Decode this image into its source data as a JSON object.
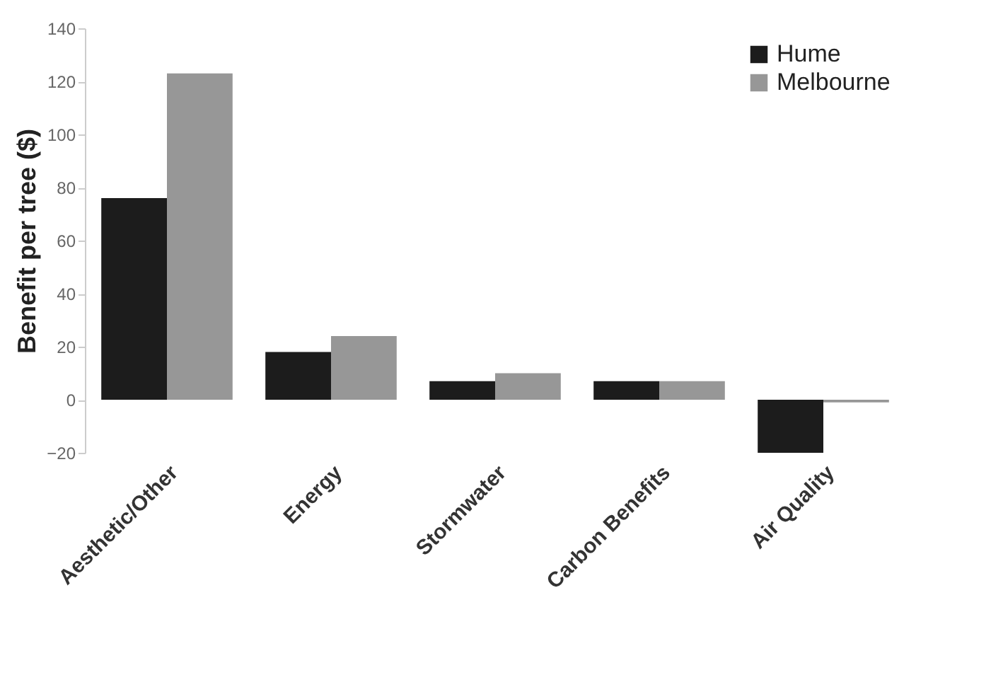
{
  "chart_data": {
    "type": "bar",
    "ylabel": "Benefit per tree ($)",
    "categories": [
      "Aesthetic/Other",
      "Energy",
      "Stormwater",
      "Carbon Benefits",
      "Air Quality"
    ],
    "series": [
      {
        "name": "Hume",
        "color": "#1c1c1c",
        "values": [
          76,
          18,
          7,
          7,
          -20
        ]
      },
      {
        "name": "Melbourne",
        "color": "#979797",
        "values": [
          123,
          24,
          10,
          7,
          -1
        ]
      }
    ],
    "ylim": [
      -20,
      140
    ],
    "yticks": [
      -20,
      0,
      20,
      40,
      60,
      80,
      100,
      120,
      140
    ],
    "grid": false,
    "legend": "top right"
  }
}
